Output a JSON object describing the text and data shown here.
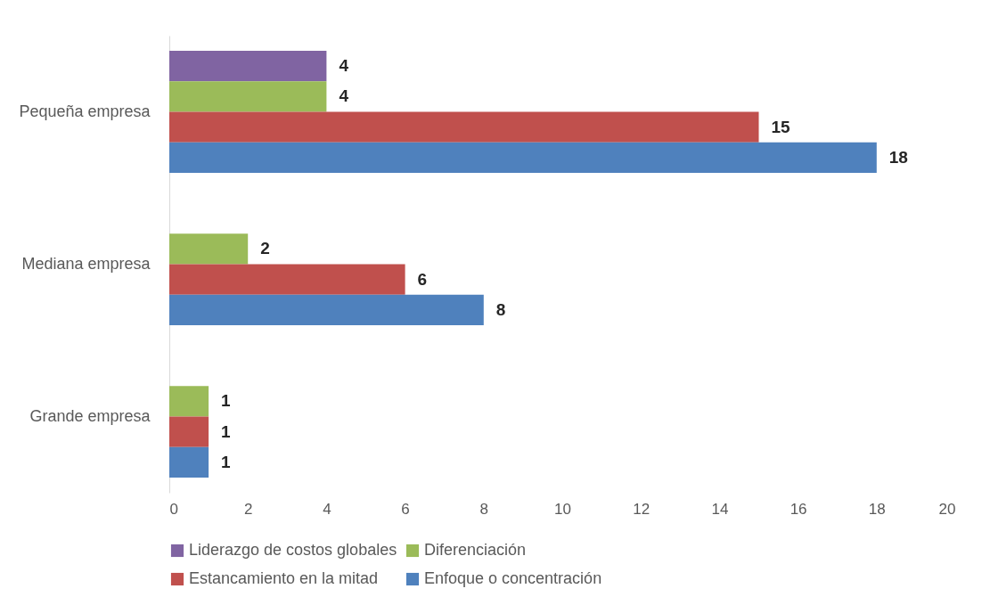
{
  "chart_data": {
    "type": "bar",
    "orientation": "horizontal",
    "categories": [
      "Pequeña empresa",
      "Mediana empresa",
      "Grande empresa"
    ],
    "series": [
      {
        "name": "Liderazgo de costos globales",
        "color": "#8064a2",
        "values": [
          4,
          null,
          null
        ]
      },
      {
        "name": "Diferenciación",
        "color": "#9bbb59",
        "values": [
          4,
          2,
          1
        ]
      },
      {
        "name": "Estancamiento en la mitad",
        "color": "#c0504d",
        "values": [
          15,
          6,
          1
        ]
      },
      {
        "name": "Enfoque o concentración",
        "color": "#4f81bd",
        "values": [
          18,
          8,
          1
        ]
      }
    ],
    "xlim": [
      0,
      20
    ],
    "xticks": [
      0,
      2,
      4,
      6,
      8,
      10,
      12,
      14,
      16,
      18,
      20
    ],
    "grid": false,
    "legend": "bottom",
    "data_labels": true
  }
}
